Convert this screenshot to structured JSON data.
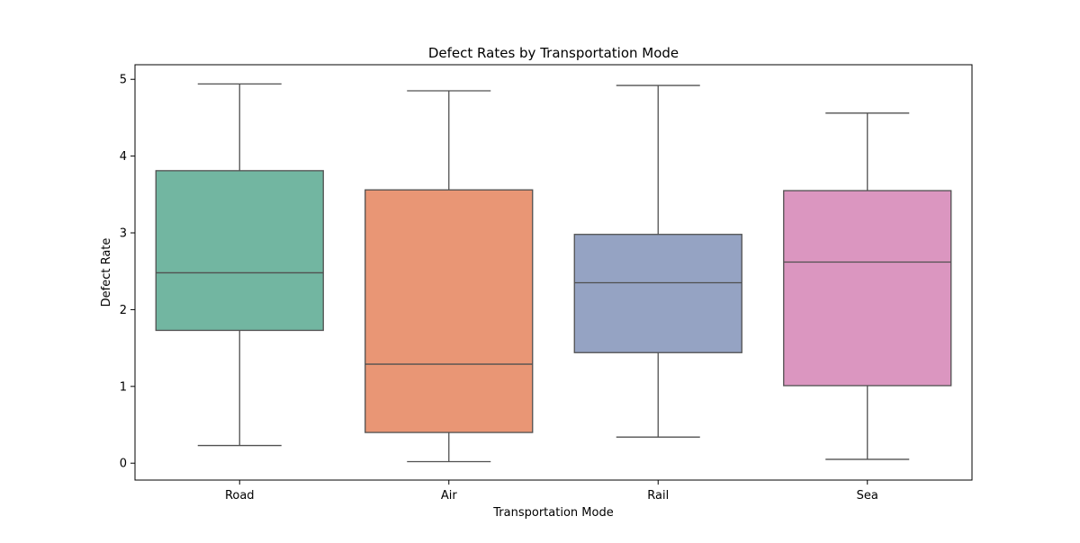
{
  "chart_data": {
    "type": "box",
    "title": "Defect Rates by Transportation Mode",
    "xlabel": "Transportation Mode",
    "ylabel": "Defect Rate",
    "ylim": [
      -0.22,
      5.19
    ],
    "yticks": [
      0,
      1,
      2,
      3,
      4,
      5
    ],
    "grid": false,
    "categories": [
      "Road",
      "Air",
      "Rail",
      "Sea"
    ],
    "boxes": [
      {
        "category": "Road",
        "whisker_low": 0.23,
        "q1": 1.73,
        "median": 2.48,
        "q3": 3.81,
        "whisker_high": 4.94,
        "color": "#72b6a1"
      },
      {
        "category": "Air",
        "whisker_low": 0.02,
        "q1": 0.4,
        "median": 1.29,
        "q3": 3.56,
        "whisker_high": 4.85,
        "color": "#e99675"
      },
      {
        "category": "Rail",
        "whisker_low": 0.34,
        "q1": 1.44,
        "median": 2.35,
        "q3": 2.98,
        "whisker_high": 4.92,
        "color": "#95a3c3"
      },
      {
        "category": "Sea",
        "whisker_low": 0.05,
        "q1": 1.01,
        "median": 2.62,
        "q3": 3.55,
        "whisker_high": 4.56,
        "color": "#db96c0"
      }
    ],
    "line_color": "#505050"
  }
}
